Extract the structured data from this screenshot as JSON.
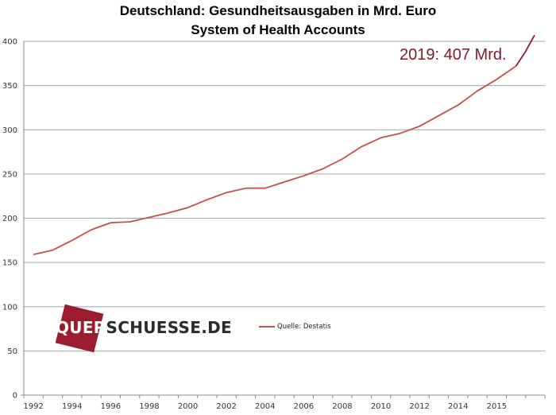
{
  "header": {
    "title_line1": "Deutschland: Gesundheitsausgaben in Mrd. Euro",
    "title_line2": "System of Health Accounts"
  },
  "annotation": {
    "text": "2019: 407 Mrd.",
    "color": "#7f1a2e"
  },
  "logo": {
    "part1": "QUER",
    "part2": "SCHUESSE.DE",
    "accent_color": "#9b1b2f"
  },
  "legend": {
    "label": "Quelle: Destatis",
    "color": "#c0504d"
  },
  "chart_data": {
    "type": "line",
    "title": "Deutschland: Gesundheitsausgaben in Mrd. Euro — System of Health Accounts",
    "xlabel": "",
    "ylabel": "",
    "ylim": [
      0,
      400
    ],
    "yticks": [
      0,
      50,
      100,
      150,
      200,
      250,
      300,
      350,
      400
    ],
    "xtick_labels": [
      "1992",
      "1994",
      "1996",
      "1998",
      "2000",
      "2002",
      "2004",
      "2006",
      "2008",
      "2010",
      "2012",
      "2014",
      "2015"
    ],
    "grid": "horizontal",
    "legend_position": "inside-bottom-center",
    "x": [
      1992,
      1993,
      1994,
      1995,
      1996,
      1997,
      1998,
      1999,
      2000,
      2001,
      2002,
      2003,
      2004,
      2005,
      2006,
      2007,
      2008,
      2009,
      2010,
      2011,
      2012,
      2013,
      2014,
      2015,
      2016,
      2017,
      2018,
      2019
    ],
    "series": [
      {
        "name": "Quelle: Destatis",
        "color": "#c0504d",
        "values": [
          159,
          164,
          175,
          187,
          195,
          196,
          201,
          206,
          212,
          221,
          229,
          234,
          234,
          241,
          248,
          256,
          267,
          281,
          291,
          296,
          304,
          316,
          328,
          344,
          357,
          372,
          388,
          407
        ]
      }
    ],
    "annotations": [
      "2019: 407 Mrd."
    ]
  }
}
